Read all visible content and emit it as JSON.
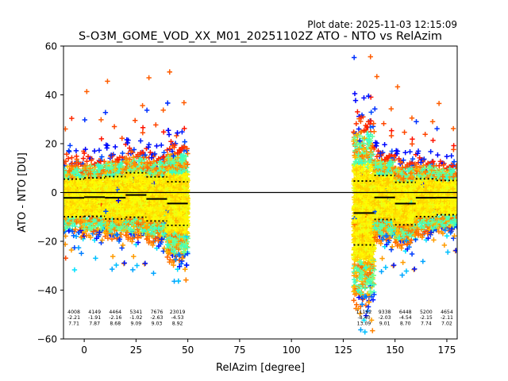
{
  "plot_date": "Plot date: 2025-11-03 12:15:09",
  "chart_data": {
    "type": "scatter",
    "title": "S-O3M_GOME_VOD_XX_M01_20251102Z ATO - NTO vs RelAzim",
    "xlabel": "RelAzim [degree]",
    "ylabel": "ATO - NTO [DU]",
    "xlim": [
      -10,
      180
    ],
    "ylim": [
      -60,
      60
    ],
    "xticks": [
      0,
      25,
      50,
      75,
      100,
      125,
      150,
      175
    ],
    "yticks": [
      -60,
      -40,
      -20,
      0,
      20,
      40,
      60
    ],
    "zero_line": 0,
    "marker": "+",
    "colormap": "jet",
    "bins": [
      {
        "x0": -10,
        "x1": 0,
        "count": 4008,
        "mean": -2.21,
        "std": 7.71,
        "upper": 5.5,
        "lower": -9.92
      },
      {
        "x0": 0,
        "x1": 10,
        "count": 4149,
        "mean": -1.91,
        "std": 7.87,
        "upper": 5.96,
        "lower": -9.78
      },
      {
        "x0": 10,
        "x1": 20,
        "count": 4464,
        "mean": -2.16,
        "std": 8.68,
        "upper": 6.52,
        "lower": -10.84
      },
      {
        "x0": 20,
        "x1": 30,
        "count": 5341,
        "mean": -1.02,
        "std": 9.09,
        "upper": 8.07,
        "lower": -10.11
      },
      {
        "x0": 30,
        "x1": 40,
        "count": 7676,
        "mean": -2.63,
        "std": 9.03,
        "upper": 6.4,
        "lower": -11.66
      },
      {
        "x0": 40,
        "x1": 50,
        "count": 23019,
        "mean": -4.53,
        "std": 8.92,
        "upper": 4.39,
        "lower": -13.45
      },
      {
        "x0": 130,
        "x1": 140,
        "count": 11162,
        "mean": -8.4,
        "std": 13.09,
        "upper": 4.69,
        "lower": -21.49
      },
      {
        "x0": 140,
        "x1": 150,
        "count": 9338,
        "mean": -2.03,
        "std": 9.01,
        "upper": 6.98,
        "lower": -11.04
      },
      {
        "x0": 150,
        "x1": 160,
        "count": 6448,
        "mean": -4.54,
        "std": 8.7,
        "upper": 4.16,
        "lower": -13.24
      },
      {
        "x0": 160,
        "x1": 170,
        "count": 5200,
        "mean": -2.15,
        "std": 7.74,
        "upper": 5.59,
        "lower": -9.89
      },
      {
        "x0": 170,
        "x1": 180,
        "count": 4654,
        "mean": -2.11,
        "std": 7.02,
        "upper": 4.91,
        "lower": -9.13
      }
    ]
  }
}
